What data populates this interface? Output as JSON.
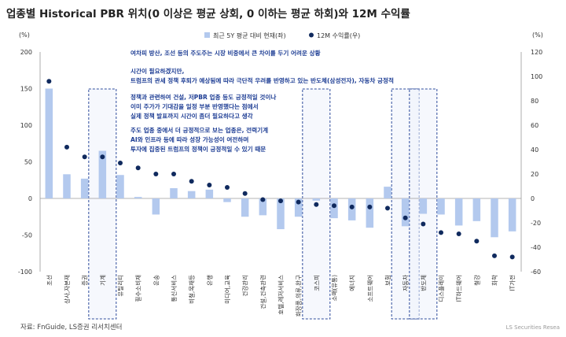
{
  "title": "업종별 Historical PBR 위치(0 이상은 평균 상회, 0 이하는 평균 하회)와 12M 수익률",
  "source": "자료: FnGuide, LS증권 리서치센터",
  "watermark": "LS Securities Resea",
  "left_unit": "(%)",
  "right_unit": "(%)",
  "annotations": [
    "여차피 방산, 조선 등의 주도주는 시장 비중에서 큰 차이를 두기  어려운 상황",
    "시간이 필요하겠지만,",
    "트럼프의 관세 정책 후퇴가 예상됨에 따라 극단적 우려를 반영하고 있는 반도체(삼성전자), 자동차 긍정적",
    "정책과 관련하여 건설, 저PBR 업종 등도 긍정적일 것이나",
    "이미 주가가 기대감을 일정 부분 반영했다는 점에서",
    "실제 정책 발표까지 시간이 좀더 필요하다고 생각",
    "주도 업종 중에서 더 긍정적으로 보는 업종은, 전력기계",
    "AI와 인프라 등에 따라 성장 가능성이 여전하며",
    "투자에 집중된 트럼프의 정책이 긍정적일 수 있기 때문"
  ],
  "colors": {
    "bar": "#b3c9ee",
    "dot": "#102a5e",
    "highlight": "#2e4c9c",
    "annotation": "#1d3d94"
  },
  "chart_data": {
    "type": "bar",
    "categories": [
      "조선",
      "상사,자본재",
      "증권",
      "기계",
      "유틸리티",
      "필수소비재",
      "운송",
      "통신서비스",
      "비철,목재등",
      "은행",
      "미디어,교육",
      "건강관리",
      "건설,건축관련",
      "호텔,레저서비스",
      "화장품,의류,완구",
      "코스피",
      "소매(유통)",
      "에너지",
      "소프트웨어",
      "보험",
      "자동차",
      "반도체",
      "디스플레이",
      "IT하드웨어",
      "철강",
      "화학",
      "IT가전"
    ],
    "series": [
      {
        "name": "최근 5Y 평균 대비 현재(좌)",
        "axis": "left",
        "type": "bar",
        "values": [
          150,
          33,
          27,
          65,
          32,
          2,
          -22,
          14,
          10,
          12,
          -5,
          -25,
          -23,
          -42,
          -25,
          -3,
          -27,
          -30,
          -40,
          16,
          -38,
          -21,
          -22,
          -37,
          -31,
          -53,
          -45
        ]
      },
      {
        "name": "12M 수익률(우)",
        "axis": "right",
        "type": "scatter",
        "values": [
          96,
          42,
          34,
          34,
          29,
          25,
          20,
          20,
          14,
          11,
          9,
          4,
          -1,
          -2,
          -3,
          -5,
          -6,
          -7,
          -7,
          -8,
          -16,
          -21,
          -28,
          -29,
          -35,
          -47,
          -48
        ]
      }
    ],
    "highlight": [
      "기계",
      "코스피",
      "자동차",
      "반도체"
    ],
    "ylim_left": [
      -100,
      200
    ],
    "ylim_right": [
      -60,
      120
    ],
    "yticks_left": [
      -100,
      -50,
      0,
      50,
      100,
      150,
      200
    ],
    "yticks_right": [
      -60,
      -40,
      -20,
      0,
      20,
      40,
      60,
      80,
      100,
      120
    ],
    "legend_position": "top-center"
  }
}
